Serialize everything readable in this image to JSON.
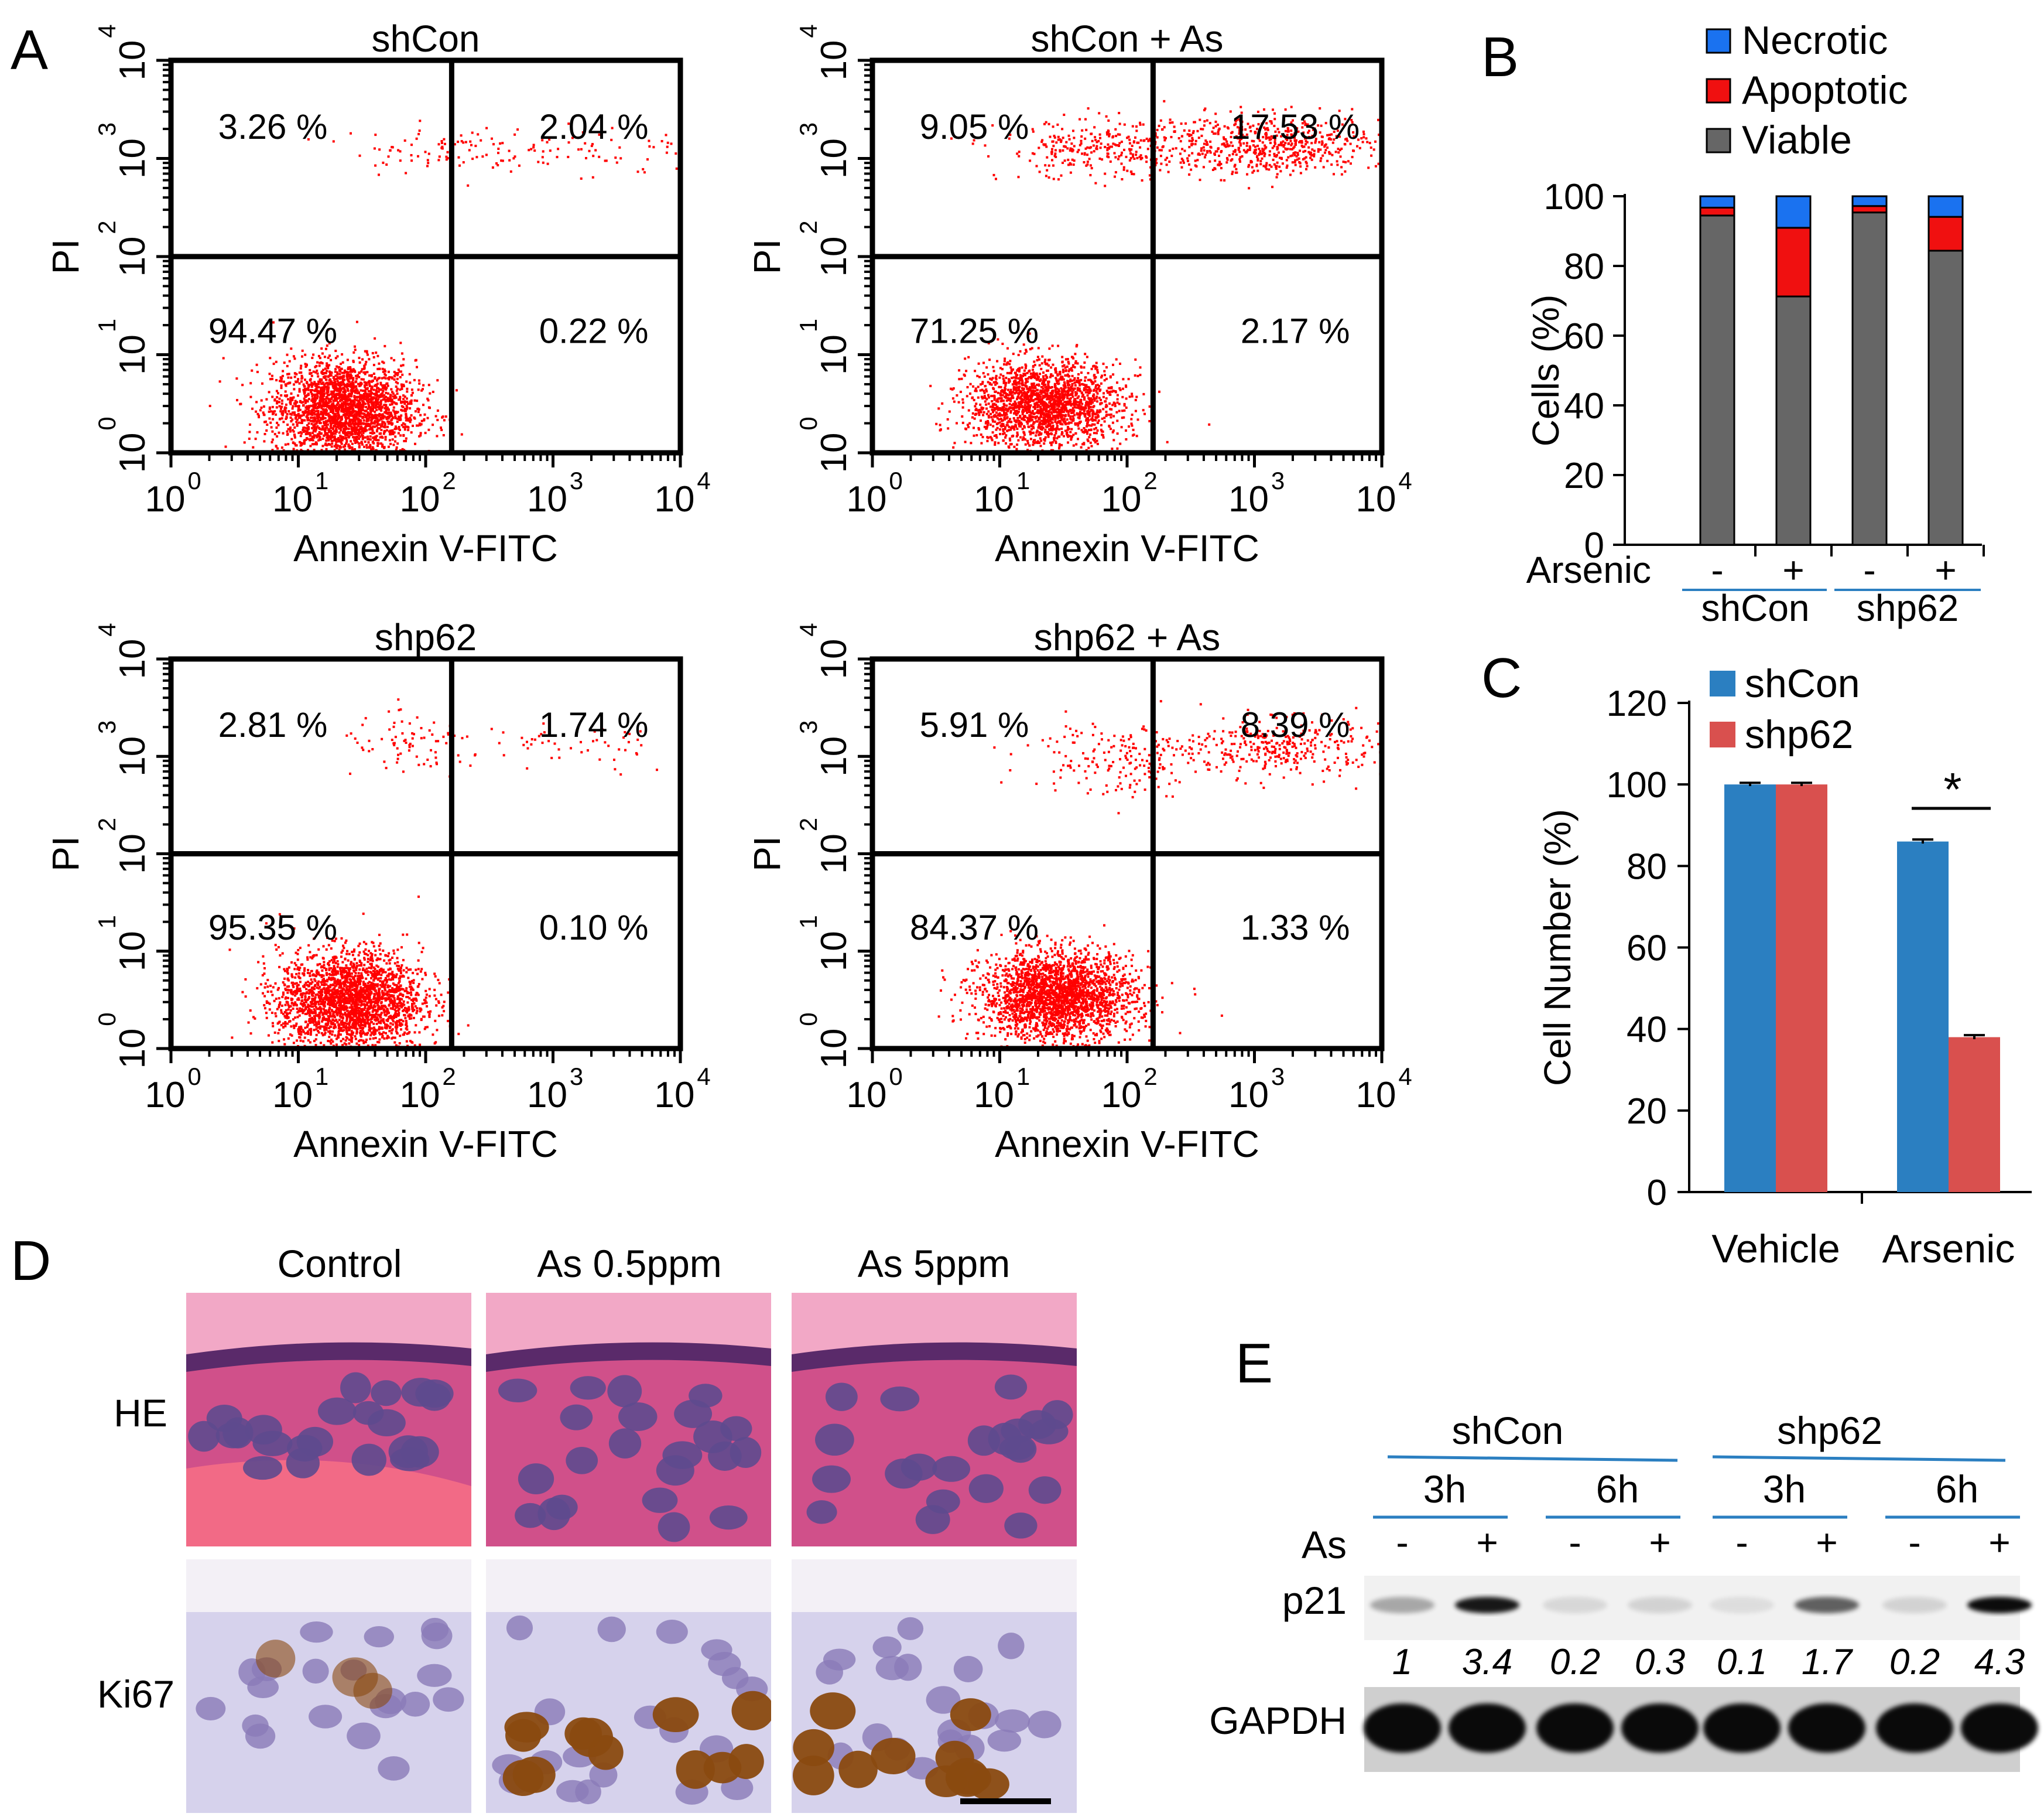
{
  "panel_labels": {
    "A": "A",
    "B": "B",
    "C": "C",
    "D": "D",
    "E": "E"
  },
  "colors": {
    "dots": "#ff0000",
    "necrotic": "#1a72f0",
    "apoptotic": "#f01010",
    "viable": "#666666",
    "shCon_bar": "#2b7fc1",
    "shp62_bar": "#d9504e",
    "line_blue": "#2b7fc1"
  },
  "chart_data": [
    {
      "id": "A-shCon",
      "type": "scatter",
      "title": "shCon",
      "xlabel": "Annexin V-FITC",
      "ylabel": "PI",
      "log_scale": true,
      "xlim": [
        1,
        10000
      ],
      "ylim": [
        1,
        10000
      ],
      "x_ticks": [
        "10",
        "10",
        "10",
        "10",
        "10"
      ],
      "x_tick_exp": [
        "0",
        "1",
        "2",
        "3",
        "4"
      ],
      "y_ticks": [
        "10",
        "10",
        "10",
        "10",
        "10"
      ],
      "y_tick_exp": [
        "0",
        "1",
        "2",
        "3",
        "4"
      ],
      "gates": {
        "x": 160,
        "y": 100
      },
      "quadrants": {
        "UL": "3.26 %",
        "UR": "2.04 %",
        "LL": "94.47 %",
        "LR": "0.22 %"
      },
      "populations": [
        {
          "cx": 1.35,
          "cy": 0.45,
          "sx": 0.28,
          "sy": 0.25,
          "n": 2500
        },
        {
          "cx": 2.1,
          "cy": 3.1,
          "sx": 0.35,
          "sy": 0.12,
          "n": 90
        },
        {
          "cx": 3.3,
          "cy": 3.1,
          "sx": 0.4,
          "sy": 0.15,
          "n": 60
        }
      ]
    },
    {
      "id": "A-shCon-As",
      "type": "scatter",
      "title": "shCon + As",
      "xlabel": "Annexin V-FITC",
      "ylabel": "PI",
      "log_scale": true,
      "xlim": [
        1,
        10000
      ],
      "ylim": [
        1,
        10000
      ],
      "x_ticks": [
        "10",
        "10",
        "10",
        "10",
        "10"
      ],
      "x_tick_exp": [
        "0",
        "1",
        "2",
        "3",
        "4"
      ],
      "y_ticks": [
        "10",
        "10",
        "10",
        "10",
        "10"
      ],
      "y_tick_exp": [
        "0",
        "1",
        "2",
        "3",
        "4"
      ],
      "gates": {
        "x": 160,
        "y": 100
      },
      "quadrants": {
        "UL": "9.05 %",
        "UR": "17.53 %",
        "LL": "71.25 %",
        "LR": "2.17 %"
      },
      "populations": [
        {
          "cx": 1.35,
          "cy": 0.5,
          "sx": 0.3,
          "sy": 0.22,
          "n": 2000
        },
        {
          "cx": 1.8,
          "cy": 3.1,
          "sx": 0.4,
          "sy": 0.15,
          "n": 300
        },
        {
          "cx": 3.1,
          "cy": 3.15,
          "sx": 0.45,
          "sy": 0.15,
          "n": 600
        }
      ]
    },
    {
      "id": "A-shp62",
      "type": "scatter",
      "title": "shp62",
      "xlabel": "Annexin V-FITC",
      "ylabel": "PI",
      "log_scale": true,
      "xlim": [
        1,
        10000
      ],
      "ylim": [
        1,
        10000
      ],
      "x_ticks": [
        "10",
        "10",
        "10",
        "10",
        "10"
      ],
      "x_tick_exp": [
        "0",
        "1",
        "2",
        "3",
        "4"
      ],
      "y_ticks": [
        "10",
        "10",
        "10",
        "10",
        "10"
      ],
      "y_tick_exp": [
        "0",
        "1",
        "2",
        "3",
        "4"
      ],
      "gates": {
        "x": 160,
        "y": 100
      },
      "quadrants": {
        "UL": "2.81 %",
        "UR": "1.74 %",
        "LL": "95.35 %",
        "LR": "0.10 %"
      },
      "populations": [
        {
          "cx": 1.4,
          "cy": 0.5,
          "sx": 0.28,
          "sy": 0.25,
          "n": 2500
        },
        {
          "cx": 1.9,
          "cy": 3.1,
          "sx": 0.3,
          "sy": 0.15,
          "n": 80
        },
        {
          "cx": 3.2,
          "cy": 3.1,
          "sx": 0.4,
          "sy": 0.15,
          "n": 50
        }
      ]
    },
    {
      "id": "A-shp62-As",
      "type": "scatter",
      "title": "shp62 + As",
      "xlabel": "Annexin V-FITC",
      "ylabel": "PI",
      "log_scale": true,
      "xlim": [
        1,
        10000
      ],
      "ylim": [
        1,
        10000
      ],
      "x_ticks": [
        "10",
        "10",
        "10",
        "10",
        "10"
      ],
      "x_tick_exp": [
        "0",
        "1",
        "2",
        "3",
        "4"
      ],
      "y_ticks": [
        "10",
        "10",
        "10",
        "10",
        "10"
      ],
      "y_tick_exp": [
        "0",
        "1",
        "2",
        "3",
        "4"
      ],
      "gates": {
        "x": 160,
        "y": 100
      },
      "quadrants": {
        "UL": "5.91 %",
        "UR": "8.39 %",
        "LL": "84.37 %",
        "LR": "1.33 %"
      },
      "populations": [
        {
          "cx": 1.45,
          "cy": 0.55,
          "sx": 0.3,
          "sy": 0.22,
          "n": 2400
        },
        {
          "cx": 1.9,
          "cy": 3.0,
          "sx": 0.35,
          "sy": 0.2,
          "n": 180
        },
        {
          "cx": 3.2,
          "cy": 3.1,
          "sx": 0.4,
          "sy": 0.15,
          "n": 320
        }
      ]
    },
    {
      "id": "B",
      "type": "bar",
      "stacked": true,
      "ylabel": "Cells (%)",
      "ylim": [
        0,
        100
      ],
      "y_ticks": [
        "0",
        "20",
        "40",
        "60",
        "80",
        "100"
      ],
      "row_label": "Arsenic",
      "categories": [
        "-",
        "+",
        "-",
        "+"
      ],
      "groups": [
        "shCon",
        "shp62"
      ],
      "legend": [
        "Necrotic",
        "Apoptotic",
        "Viable"
      ],
      "series": [
        {
          "name": "Viable",
          "values": [
            94.47,
            71.25,
            95.35,
            84.37
          ]
        },
        {
          "name": "Apoptotic",
          "values": [
            2.26,
            19.7,
            1.84,
            9.72
          ]
        },
        {
          "name": "Necrotic",
          "values": [
            3.26,
            9.05,
            2.81,
            5.91
          ]
        }
      ]
    },
    {
      "id": "C",
      "type": "bar",
      "ylabel": "Cell Number (%)",
      "ylim": [
        0,
        120
      ],
      "y_ticks": [
        "0",
        "20",
        "40",
        "60",
        "80",
        "100",
        "120"
      ],
      "categories": [
        "Vehicle",
        "Arsenic"
      ],
      "legend": [
        "shCon",
        "shp62"
      ],
      "series": [
        {
          "name": "shCon",
          "values": [
            100,
            86
          ]
        },
        {
          "name": "shp62",
          "values": [
            100,
            38
          ]
        }
      ],
      "errors": [
        [
          0.4,
          0.5
        ],
        [
          0.4,
          0.5
        ]
      ],
      "significance": "*"
    },
    {
      "id": "E",
      "type": "table",
      "groups": [
        "shCon",
        "shp62"
      ],
      "times": [
        "3h",
        "6h",
        "3h",
        "6h"
      ],
      "row_label_as": "As",
      "as_signs": [
        "-",
        "+",
        "-",
        "+",
        "-",
        "+",
        "-",
        "+"
      ],
      "blots": [
        "p21",
        "GAPDH"
      ],
      "p21_intensity": [
        0.3,
        0.9,
        0.1,
        0.12,
        0.08,
        0.6,
        0.12,
        0.95
      ],
      "values": [
        "1",
        "3.4",
        "0.2",
        "0.3",
        "0.1",
        "1.7",
        "0.2",
        "4.3"
      ]
    }
  ],
  "panelD": {
    "columns": [
      "Control",
      "As 0.5ppm",
      "As 5ppm"
    ],
    "rows": [
      "HE",
      "Ki67"
    ]
  }
}
